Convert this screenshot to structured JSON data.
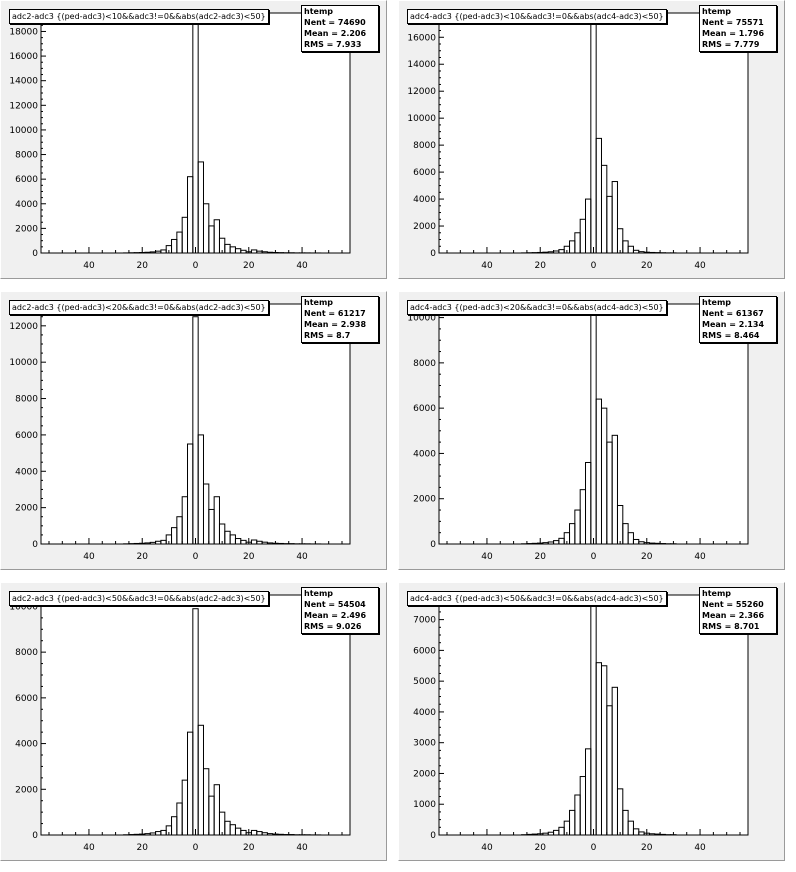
{
  "chart_data": [
    {
      "type": "bar",
      "title": "adc2-adc3 {(ped-adc3)<10&&adc3!=0&&abs(adc2-adc3)<50}",
      "stats": {
        "name": "htemp",
        "entries_label": "Nent = 74690",
        "mean_label": "Mean =  2.206",
        "rms_label": "RMS  =  7.933"
      },
      "xlim": [
        -58,
        58
      ],
      "ylim": [
        0,
        19500
      ],
      "yticks": [
        0,
        2000,
        4000,
        6000,
        8000,
        10000,
        12000,
        14000,
        16000,
        18000
      ],
      "xticks": [
        -40,
        -20,
        0,
        20,
        40
      ],
      "xticklabels": [
        "40",
        "20",
        "0",
        "20",
        "40"
      ],
      "bins": [
        -26,
        -24,
        -22,
        -20,
        -18,
        -16,
        -14,
        -12,
        -10,
        -8,
        -6,
        -4,
        -2,
        0,
        2,
        4,
        6,
        8,
        10,
        12,
        14,
        16,
        18,
        20,
        22,
        24,
        26,
        28,
        30,
        32,
        34,
        36,
        38,
        40,
        42,
        44,
        46
      ],
      "values": [
        10,
        20,
        30,
        40,
        60,
        90,
        150,
        250,
        600,
        1100,
        1700,
        2900,
        6200,
        18600,
        7400,
        4000,
        2200,
        2700,
        1200,
        700,
        500,
        350,
        220,
        100,
        250,
        150,
        100,
        60,
        40,
        30,
        20,
        20,
        10,
        10,
        10,
        5,
        5
      ]
    },
    {
      "type": "bar",
      "title": "adc4-adc3 {(ped-adc3)<10&&adc3!=0&&abs(adc4-adc3)<50}",
      "stats": {
        "name": "htemp",
        "entries_label": "Nent = 75571",
        "mean_label": "Mean =  1.796",
        "rms_label": "RMS  =  7.779"
      },
      "xlim": [
        -58,
        58
      ],
      "ylim": [
        0,
        17800
      ],
      "yticks": [
        0,
        2000,
        4000,
        6000,
        8000,
        10000,
        12000,
        14000,
        16000
      ],
      "xticks": [
        -40,
        -20,
        0,
        20,
        40
      ],
      "xticklabels": [
        "40",
        "20",
        "0",
        "20",
        "40"
      ],
      "bins": [
        -26,
        -24,
        -22,
        -20,
        -18,
        -16,
        -14,
        -12,
        -10,
        -8,
        -6,
        -4,
        -2,
        0,
        2,
        4,
        6,
        8,
        10,
        12,
        14,
        16,
        18,
        20,
        22,
        24,
        26,
        28,
        30
      ],
      "values": [
        10,
        20,
        30,
        40,
        60,
        90,
        150,
        250,
        500,
        900,
        1500,
        2500,
        4000,
        17000,
        8500,
        6500,
        4200,
        5300,
        1800,
        900,
        500,
        200,
        100,
        60,
        40,
        30,
        20,
        10,
        10
      ]
    },
    {
      "type": "bar",
      "title": "adc2-adc3 {(ped-adc3)<20&&adc3!=0&&abs(adc2-adc3)<50}",
      "stats": {
        "name": "htemp",
        "entries_label": "Nent = 61217",
        "mean_label": "Mean =  2.938",
        "rms_label": "RMS  =    8.7"
      },
      "xlim": [
        -58,
        58
      ],
      "ylim": [
        0,
        13200
      ],
      "yticks": [
        0,
        2000,
        4000,
        6000,
        8000,
        10000,
        12000
      ],
      "xticks": [
        -40,
        -20,
        0,
        20,
        40
      ],
      "xticklabels": [
        "40",
        "20",
        "0",
        "20",
        "40"
      ],
      "bins": [
        -26,
        -24,
        -22,
        -20,
        -18,
        -16,
        -14,
        -12,
        -10,
        -8,
        -6,
        -4,
        -2,
        0,
        2,
        4,
        6,
        8,
        10,
        12,
        14,
        16,
        18,
        20,
        22,
        24,
        26,
        28,
        30,
        32,
        34,
        36,
        38,
        40,
        42,
        44,
        46
      ],
      "values": [
        10,
        20,
        30,
        40,
        60,
        90,
        150,
        200,
        500,
        900,
        1500,
        2600,
        5500,
        12500,
        6000,
        3300,
        1900,
        2600,
        1100,
        700,
        500,
        300,
        200,
        100,
        220,
        150,
        100,
        60,
        40,
        30,
        20,
        20,
        10,
        10,
        10,
        5,
        5
      ]
    },
    {
      "type": "bar",
      "title": "adc4-adc3 {(ped-adc3)<20&&adc3!=0&&abs(adc4-adc3)<50}",
      "stats": {
        "name": "htemp",
        "entries_label": "Nent = 61367",
        "mean_label": "Mean =  2.134",
        "rms_label": "RMS  =  8.464"
      },
      "xlim": [
        -58,
        58
      ],
      "ylim": [
        0,
        10600
      ],
      "yticks": [
        0,
        2000,
        4000,
        6000,
        8000,
        10000
      ],
      "xticks": [
        -40,
        -20,
        0,
        20,
        40
      ],
      "xticklabels": [
        "40",
        "20",
        "0",
        "20",
        "40"
      ],
      "bins": [
        -26,
        -24,
        -22,
        -20,
        -18,
        -16,
        -14,
        -12,
        -10,
        -8,
        -6,
        -4,
        -2,
        0,
        2,
        4,
        6,
        8,
        10,
        12,
        14,
        16,
        18,
        20,
        22,
        24,
        26,
        28,
        30
      ],
      "values": [
        10,
        20,
        30,
        40,
        60,
        90,
        150,
        250,
        500,
        900,
        1500,
        2400,
        3600,
        10200,
        6400,
        6000,
        4500,
        4800,
        1700,
        900,
        500,
        200,
        100,
        60,
        40,
        30,
        20,
        10,
        10
      ]
    },
    {
      "type": "bar",
      "title": "adc2-adc3 {(ped-adc3)<50&&adc3!=0&&abs(adc2-adc3)<50}",
      "stats": {
        "name": "htemp",
        "entries_label": "Nent = 54504",
        "mean_label": "Mean =  2.496",
        "rms_label": "RMS  =  9.026"
      },
      "xlim": [
        -58,
        58
      ],
      "ylim": [
        0,
        10500
      ],
      "yticks": [
        0,
        2000,
        4000,
        6000,
        8000,
        10000
      ],
      "xticks": [
        -40,
        -20,
        0,
        20,
        40
      ],
      "xticklabels": [
        "40",
        "20",
        "0",
        "20",
        "40"
      ],
      "bins": [
        -26,
        -24,
        -22,
        -20,
        -18,
        -16,
        -14,
        -12,
        -10,
        -8,
        -6,
        -4,
        -2,
        0,
        2,
        4,
        6,
        8,
        10,
        12,
        14,
        16,
        18,
        20,
        22,
        24,
        26,
        28,
        30,
        32,
        34,
        36,
        38,
        40,
        42,
        44,
        46
      ],
      "values": [
        10,
        20,
        30,
        40,
        60,
        90,
        150,
        200,
        400,
        800,
        1400,
        2400,
        4500,
        9900,
        4800,
        2900,
        1700,
        2200,
        1000,
        600,
        450,
        300,
        200,
        100,
        200,
        150,
        100,
        60,
        40,
        30,
        20,
        20,
        10,
        10,
        10,
        5,
        5
      ]
    },
    {
      "type": "bar",
      "title": "adc4-adc3 {(ped-adc3)<50&&adc3!=0&&abs(adc4-adc3)<50}",
      "stats": {
        "name": "htemp",
        "entries_label": "Nent = 55260",
        "mean_label": "Mean =  2.366",
        "rms_label": "RMS  =  8.701"
      },
      "xlim": [
        -58,
        58
      ],
      "ylim": [
        0,
        7800
      ],
      "yticks": [
        0,
        1000,
        2000,
        3000,
        4000,
        5000,
        6000,
        7000
      ],
      "xticks": [
        -40,
        -20,
        0,
        20,
        40
      ],
      "xticklabels": [
        "40",
        "20",
        "0",
        "20",
        "40"
      ],
      "bins": [
        -26,
        -24,
        -22,
        -20,
        -18,
        -16,
        -14,
        -12,
        -10,
        -8,
        -6,
        -4,
        -2,
        0,
        2,
        4,
        6,
        8,
        10,
        12,
        14,
        16,
        18,
        20,
        22,
        24,
        26,
        28,
        30
      ],
      "values": [
        10,
        20,
        30,
        40,
        60,
        90,
        150,
        250,
        450,
        800,
        1300,
        1900,
        2800,
        7600,
        5600,
        5500,
        4200,
        4800,
        1500,
        800,
        450,
        200,
        100,
        60,
        40,
        30,
        20,
        10,
        10
      ]
    }
  ]
}
